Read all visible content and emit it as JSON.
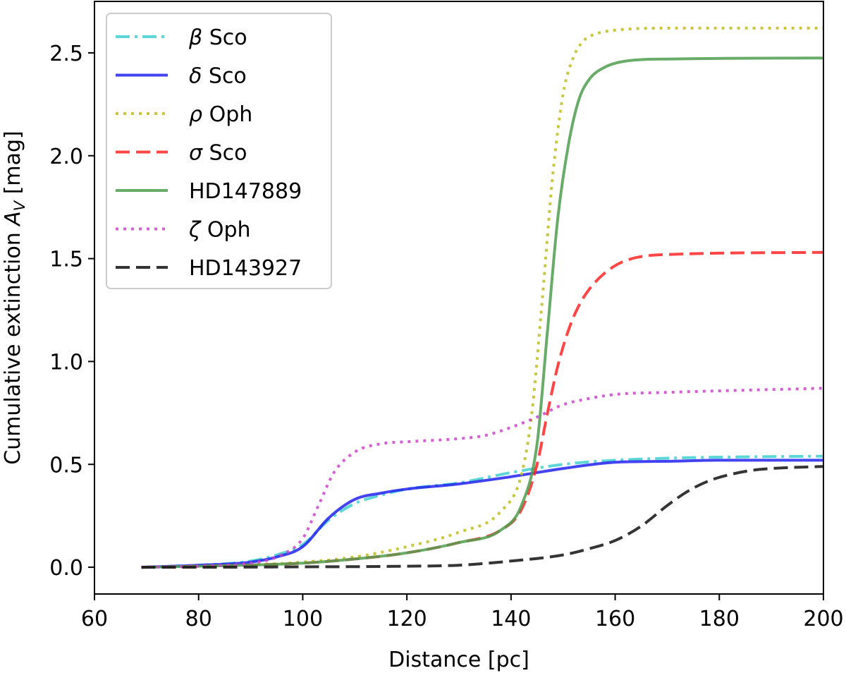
{
  "chart_data": {
    "type": "line",
    "xlabel": "Distance [pc]",
    "ylabel": {
      "prefix": "Cumulative extinction ",
      "symbol": "A",
      "subscript": "V",
      "suffix": " [mag]"
    },
    "xlim": [
      60,
      200
    ],
    "ylim": [
      -0.13,
      2.75
    ],
    "x_ticks": [
      60,
      80,
      100,
      120,
      140,
      160,
      180,
      200
    ],
    "y_ticks": [
      0.0,
      0.5,
      1.0,
      1.5,
      2.0,
      2.5
    ],
    "x_tick_labels": [
      "60",
      "80",
      "100",
      "120",
      "140",
      "160",
      "180",
      "200"
    ],
    "y_tick_labels": [
      "0.0",
      "0.5",
      "1.0",
      "1.5",
      "2.0",
      "2.5"
    ],
    "grid": false,
    "legend_position": "top-left",
    "series": [
      {
        "name": "β Sco",
        "name_symbol": "β",
        "name_text": " Sco",
        "color": "#40cfcf",
        "dash": "dashdot",
        "x": [
          69,
          80,
          90,
          95,
          100,
          105,
          110,
          115,
          120,
          130,
          140,
          150,
          160,
          170,
          180,
          200
        ],
        "y": [
          0.0,
          0.01,
          0.03,
          0.06,
          0.11,
          0.23,
          0.31,
          0.35,
          0.38,
          0.41,
          0.46,
          0.5,
          0.52,
          0.53,
          0.535,
          0.54
        ]
      },
      {
        "name": "δ Sco",
        "name_symbol": "δ",
        "name_text": " Sco",
        "color": "#2222ee",
        "dash": "solid",
        "x": [
          69,
          80,
          90,
          95,
          100,
          105,
          110,
          115,
          120,
          130,
          140,
          150,
          160,
          170,
          180,
          200
        ],
        "y": [
          0.0,
          0.01,
          0.025,
          0.05,
          0.1,
          0.24,
          0.33,
          0.36,
          0.38,
          0.405,
          0.44,
          0.48,
          0.51,
          0.515,
          0.52,
          0.52
        ]
      },
      {
        "name": "ρ Oph",
        "name_symbol": "ρ",
        "name_text": " Oph",
        "color": "#bdbd1f",
        "dash": "dotted",
        "x": [
          69,
          80,
          100,
          110,
          120,
          130,
          138,
          142,
          144,
          146,
          148,
          150,
          152,
          154,
          156,
          160,
          170,
          200
        ],
        "y": [
          0.0,
          0.005,
          0.025,
          0.05,
          0.1,
          0.17,
          0.27,
          0.45,
          0.75,
          1.3,
          1.9,
          2.3,
          2.48,
          2.56,
          2.59,
          2.61,
          2.62,
          2.62
        ]
      },
      {
        "name": "σ Sco",
        "name_symbol": "σ",
        "name_text": " Sco",
        "color": "#ff2424",
        "dash": "dashed",
        "x": [
          69,
          80,
          100,
          110,
          120,
          130,
          138,
          142,
          145,
          147,
          149,
          151,
          153,
          155,
          158,
          162,
          170,
          200
        ],
        "y": [
          0.0,
          0.005,
          0.02,
          0.04,
          0.07,
          0.12,
          0.18,
          0.28,
          0.5,
          0.75,
          0.98,
          1.15,
          1.27,
          1.35,
          1.43,
          1.49,
          1.52,
          1.53
        ]
      },
      {
        "name": "HD147889",
        "name_symbol": "",
        "name_text": "HD147889",
        "color": "#4f9e4f",
        "dash": "solid",
        "x": [
          69,
          80,
          100,
          110,
          120,
          130,
          138,
          142,
          145,
          147,
          149,
          151,
          153,
          155,
          158,
          162,
          170,
          200
        ],
        "y": [
          0.0,
          0.005,
          0.02,
          0.04,
          0.07,
          0.12,
          0.18,
          0.3,
          0.6,
          1.15,
          1.7,
          2.05,
          2.27,
          2.37,
          2.43,
          2.46,
          2.47,
          2.475
        ]
      },
      {
        "name": "ζ Oph",
        "name_symbol": "ζ",
        "name_text": " Oph",
        "color": "#cc44cc",
        "dash": "dotted",
        "x": [
          69,
          80,
          90,
          95,
          100,
          103,
          106,
          110,
          115,
          120,
          130,
          135,
          140,
          145,
          150,
          155,
          160,
          170,
          200
        ],
        "y": [
          0.0,
          0.005,
          0.02,
          0.05,
          0.14,
          0.3,
          0.46,
          0.56,
          0.6,
          0.61,
          0.625,
          0.64,
          0.68,
          0.73,
          0.79,
          0.82,
          0.84,
          0.85,
          0.87
        ]
      },
      {
        "name": "HD143927",
        "name_symbol": "",
        "name_text": "HD143927",
        "color": "#111111",
        "dash": "dashed",
        "x": [
          69,
          80,
          100,
          120,
          130,
          140,
          150,
          155,
          160,
          165,
          170,
          174,
          178,
          182,
          186,
          190,
          200
        ],
        "y": [
          0.0,
          0.0,
          0.002,
          0.005,
          0.01,
          0.03,
          0.06,
          0.09,
          0.13,
          0.2,
          0.3,
          0.37,
          0.42,
          0.45,
          0.47,
          0.48,
          0.49
        ]
      }
    ]
  }
}
